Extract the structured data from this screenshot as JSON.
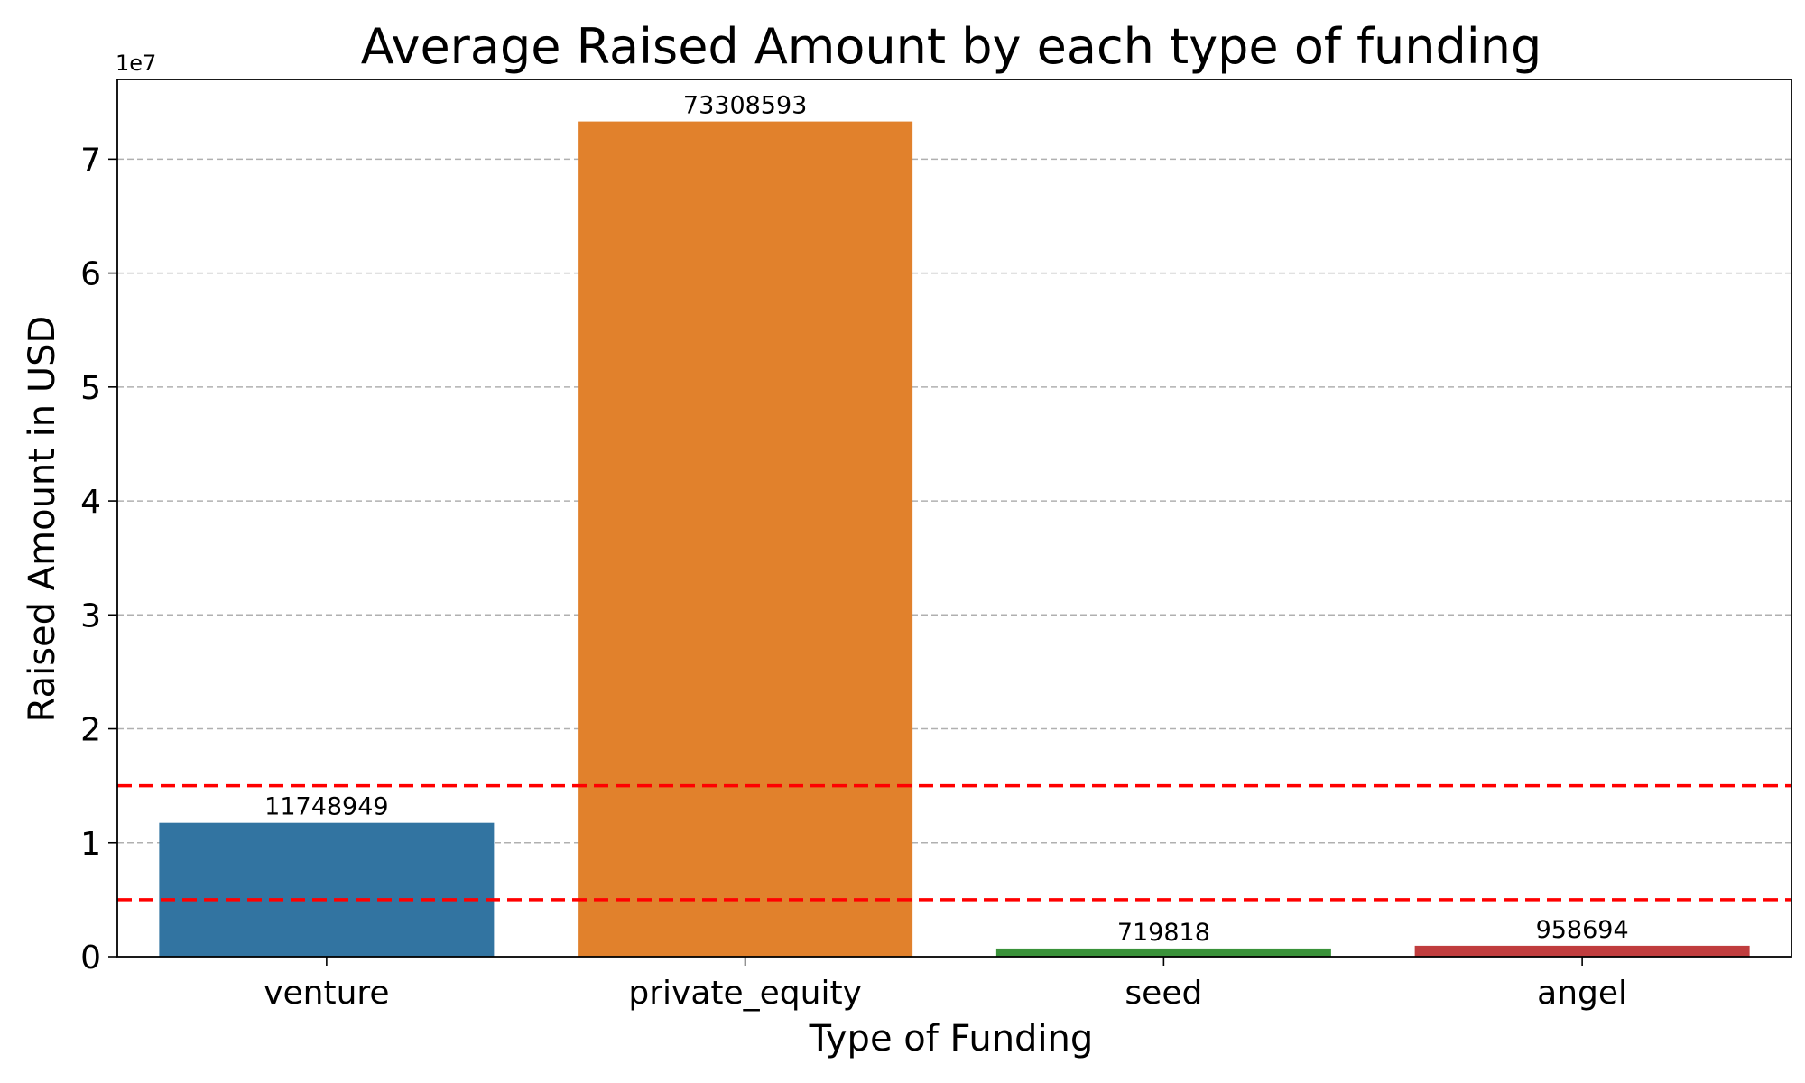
{
  "chart_data": {
    "type": "bar",
    "title": "Average Raised Amount by each type of funding",
    "xlabel": "Type of Funding",
    "ylabel": "Raised Amount in USD",
    "y_offset_label": "1e7",
    "categories": [
      "venture",
      "private_equity",
      "seed",
      "angel"
    ],
    "values": [
      11748949,
      73308593,
      719818,
      958694
    ],
    "data_labels": [
      "11748949",
      "73308593",
      "719818",
      "958694"
    ],
    "colors": [
      "#3274a1",
      "#e1812c",
      "#3a923a",
      "#c03d3e"
    ],
    "ylim": [
      0,
      77000000
    ],
    "y_ticks": [
      0,
      10000000,
      20000000,
      30000000,
      40000000,
      50000000,
      60000000,
      70000000
    ],
    "y_tick_labels": [
      "0",
      "1",
      "2",
      "3",
      "4",
      "5",
      "6",
      "7"
    ],
    "grid": "horizontal dashed",
    "reference_lines": [
      {
        "value": 5000000,
        "color": "#ff0000",
        "style": "dashed"
      },
      {
        "value": 15000000,
        "color": "#ff0000",
        "style": "dashed"
      }
    ]
  }
}
